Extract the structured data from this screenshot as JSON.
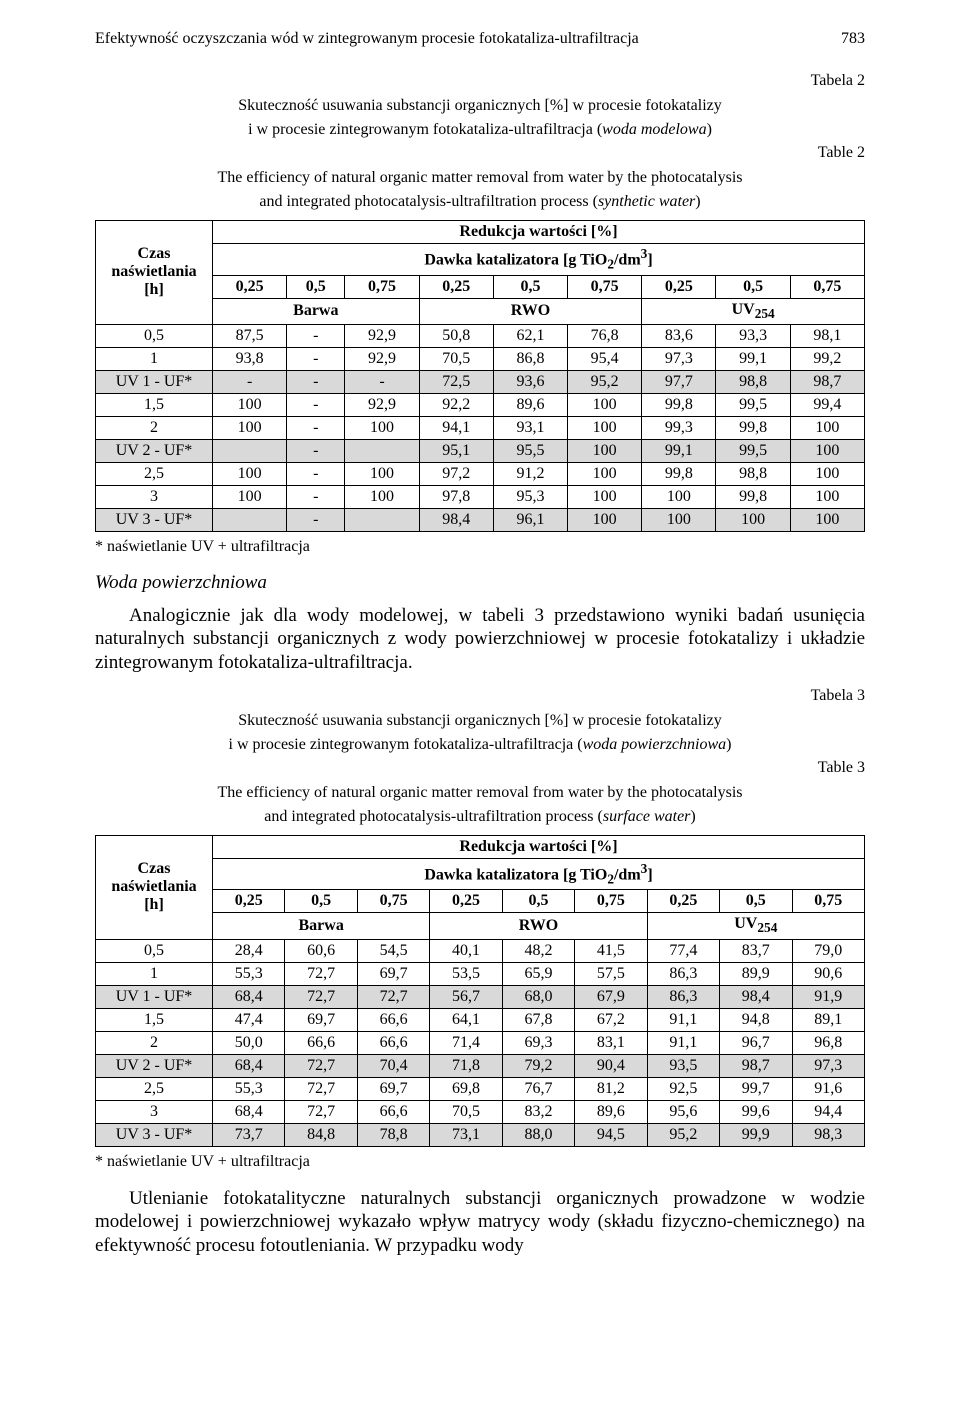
{
  "header": {
    "title": "Efektywność oczyszczania wód w zintegrowanym procesie fotokataliza-ultrafiltracja",
    "page": "783"
  },
  "table2": {
    "label_right_top": "Tabela 2",
    "caption_pl_1": "Skuteczność usuwania substancji organicznych [%] w procesie fotokatalizy",
    "caption_pl_2": "i w procesie zintegrowanym fotokataliza-ultrafiltracja (woda modelowa)",
    "label_right_mid": "Table 2",
    "caption_en_1": "The efficiency of natural organic matter removal from water by the photocatalysis",
    "caption_en_2": "and integrated photocatalysis-ultrafiltration process (synthetic water)",
    "rowlabel_1": "Czas",
    "rowlabel_2": "naświetlania",
    "rowlabel_3": "[h]",
    "head_red": "Redukcja wartości [%]",
    "head_dose": "Dawka katalizatora [g TiO",
    "head_dose_sub": "2",
    "head_dose_tail": "/dm",
    "head_dose_sup": "3",
    "head_dose_end": "]",
    "doses": [
      "0,25",
      "0,5",
      "0,75",
      "0,25",
      "0,5",
      "0,75",
      "0,25",
      "0,5",
      "0,75"
    ],
    "groups": [
      "Barwa",
      "RWO",
      "UV"
    ],
    "group_sub": "254",
    "rows": [
      {
        "t": "0,5",
        "v": [
          "87,5",
          "-",
          "92,9",
          "50,8",
          "62,1",
          "76,8",
          "83,6",
          "93,3",
          "98,1"
        ],
        "shaded": false
      },
      {
        "t": "1",
        "v": [
          "93,8",
          "-",
          "92,9",
          "70,5",
          "86,8",
          "95,4",
          "97,3",
          "99,1",
          "99,2"
        ],
        "shaded": false
      },
      {
        "t": "UV 1 - UF*",
        "v": [
          "-",
          "-",
          "-",
          "72,5",
          "93,6",
          "95,2",
          "97,7",
          "98,8",
          "98,7"
        ],
        "shaded": true
      },
      {
        "t": "1,5",
        "v": [
          "100",
          "-",
          "92,9",
          "92,2",
          "89,6",
          "100",
          "99,8",
          "99,5",
          "99,4"
        ],
        "shaded": false
      },
      {
        "t": "2",
        "v": [
          "100",
          "-",
          "100",
          "94,1",
          "93,1",
          "100",
          "99,3",
          "99,8",
          "100"
        ],
        "shaded": false
      },
      {
        "t": "UV 2 - UF*",
        "v": [
          "",
          "-",
          "",
          "95,1",
          "95,5",
          "100",
          "99,1",
          "99,5",
          "100"
        ],
        "shaded": true
      },
      {
        "t": "2,5",
        "v": [
          "100",
          "-",
          "100",
          "97,2",
          "91,2",
          "100",
          "99,8",
          "98,8",
          "100"
        ],
        "shaded": false
      },
      {
        "t": "3",
        "v": [
          "100",
          "-",
          "100",
          "97,8",
          "95,3",
          "100",
          "100",
          "99,8",
          "100"
        ],
        "shaded": false
      },
      {
        "t": "UV 3 - UF*",
        "v": [
          "",
          "-",
          "",
          "98,4",
          "96,1",
          "100",
          "100",
          "100",
          "100"
        ],
        "shaded": true
      }
    ],
    "footnote": "* naświetlanie UV + ultrafiltracja"
  },
  "section": {
    "heading": "Woda powierzchniowa",
    "para": "Analogicznie jak dla wody modelowej, w tabeli 3 przedstawiono wyniki badań usunięcia naturalnych substancji organicznych z wody powierzchniowej w procesie fotokatalizy i układzie zintegrowanym fotokataliza-ultrafiltracja."
  },
  "table3": {
    "label_right_top": "Tabela 3",
    "caption_pl_1": "Skuteczność usuwania substancji organicznych [%] w procesie fotokatalizy",
    "caption_pl_2": "i w procesie zintegrowanym fotokataliza-ultrafiltracja (woda powierzchniowa)",
    "label_right_mid": "Table 3",
    "caption_en_1": "The efficiency of natural organic matter removal from water by the photocatalysis",
    "caption_en_2": "and integrated photocatalysis-ultrafiltration process (surface water)",
    "rows": [
      {
        "t": "0,5",
        "v": [
          "28,4",
          "60,6",
          "54,5",
          "40,1",
          "48,2",
          "41,5",
          "77,4",
          "83,7",
          "79,0"
        ],
        "shaded": false
      },
      {
        "t": "1",
        "v": [
          "55,3",
          "72,7",
          "69,7",
          "53,5",
          "65,9",
          "57,5",
          "86,3",
          "89,9",
          "90,6"
        ],
        "shaded": false
      },
      {
        "t": "UV 1 - UF*",
        "v": [
          "68,4",
          "72,7",
          "72,7",
          "56,7",
          "68,0",
          "67,9",
          "86,3",
          "98,4",
          "91,9"
        ],
        "shaded": true
      },
      {
        "t": "1,5",
        "v": [
          "47,4",
          "69,7",
          "66,6",
          "64,1",
          "67,8",
          "67,2",
          "91,1",
          "94,8",
          "89,1"
        ],
        "shaded": false
      },
      {
        "t": "2",
        "v": [
          "50,0",
          "66,6",
          "66,6",
          "71,4",
          "69,3",
          "83,1",
          "91,1",
          "96,7",
          "96,8"
        ],
        "shaded": false
      },
      {
        "t": "UV 2 - UF*",
        "v": [
          "68,4",
          "72,7",
          "70,4",
          "71,8",
          "79,2",
          "90,4",
          "93,5",
          "98,7",
          "97,3"
        ],
        "shaded": true
      },
      {
        "t": "2,5",
        "v": [
          "55,3",
          "72,7",
          "69,7",
          "69,8",
          "76,7",
          "81,2",
          "92,5",
          "99,7",
          "91,6"
        ],
        "shaded": false
      },
      {
        "t": "3",
        "v": [
          "68,4",
          "72,7",
          "66,6",
          "70,5",
          "83,2",
          "89,6",
          "95,6",
          "99,6",
          "94,4"
        ],
        "shaded": false
      },
      {
        "t": "UV 3 - UF*",
        "v": [
          "73,7",
          "84,8",
          "78,8",
          "73,1",
          "88,0",
          "94,5",
          "95,2",
          "99,9",
          "98,3"
        ],
        "shaded": true
      }
    ],
    "footnote": "* naświetlanie UV + ultrafiltracja"
  },
  "closing_para": "Utlenianie fotokatalityczne naturalnych substancji organicznych prowadzone w wodzie modelowej i powierzchniowej wykazało wpływ matrycy wody (składu fizyczno-chemicznego) na efektywność procesu fotoutleniania. W przypadku wody"
}
